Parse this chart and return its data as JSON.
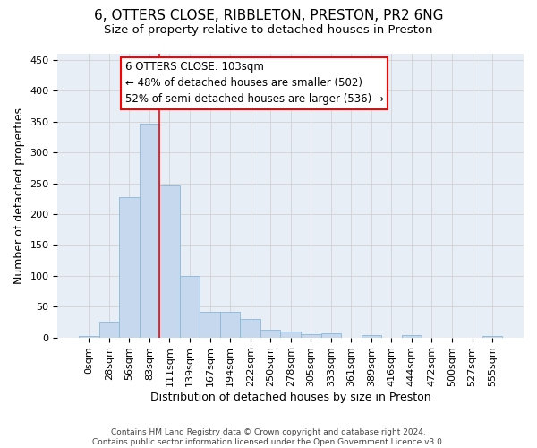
{
  "title1": "6, OTTERS CLOSE, RIBBLETON, PRESTON, PR2 6NG",
  "title2": "Size of property relative to detached houses in Preston",
  "xlabel": "Distribution of detached houses by size in Preston",
  "ylabel": "Number of detached properties",
  "footer1": "Contains HM Land Registry data © Crown copyright and database right 2024.",
  "footer2": "Contains public sector information licensed under the Open Government Licence v3.0.",
  "x_labels": [
    "0sqm",
    "28sqm",
    "56sqm",
    "83sqm",
    "111sqm",
    "139sqm",
    "167sqm",
    "194sqm",
    "222sqm",
    "250sqm",
    "278sqm",
    "305sqm",
    "333sqm",
    "361sqm",
    "389sqm",
    "416sqm",
    "444sqm",
    "472sqm",
    "500sqm",
    "527sqm",
    "555sqm"
  ],
  "bar_values": [
    3,
    25,
    227,
    347,
    247,
    100,
    41,
    41,
    30,
    13,
    10,
    5,
    6,
    0,
    4,
    0,
    4,
    0,
    0,
    0,
    3
  ],
  "bar_color": "#c5d8ed",
  "bar_edgecolor": "#8ab8d8",
  "grid_color": "#cccccc",
  "bg_color": "#e8eef5",
  "vline_x": 3.5,
  "vline_color": "red",
  "annotation_text": "6 OTTERS CLOSE: 103sqm\n← 48% of detached houses are smaller (502)\n52% of semi-detached houses are larger (536) →",
  "annotation_box_color": "white",
  "annotation_edge_color": "red",
  "ylim": [
    0,
    460
  ],
  "yticks": [
    0,
    50,
    100,
    150,
    200,
    250,
    300,
    350,
    400,
    450
  ],
  "title1_fontsize": 11,
  "title2_fontsize": 9.5,
  "xlabel_fontsize": 9,
  "ylabel_fontsize": 9,
  "annotation_fontsize": 8.5,
  "tick_fontsize": 8
}
